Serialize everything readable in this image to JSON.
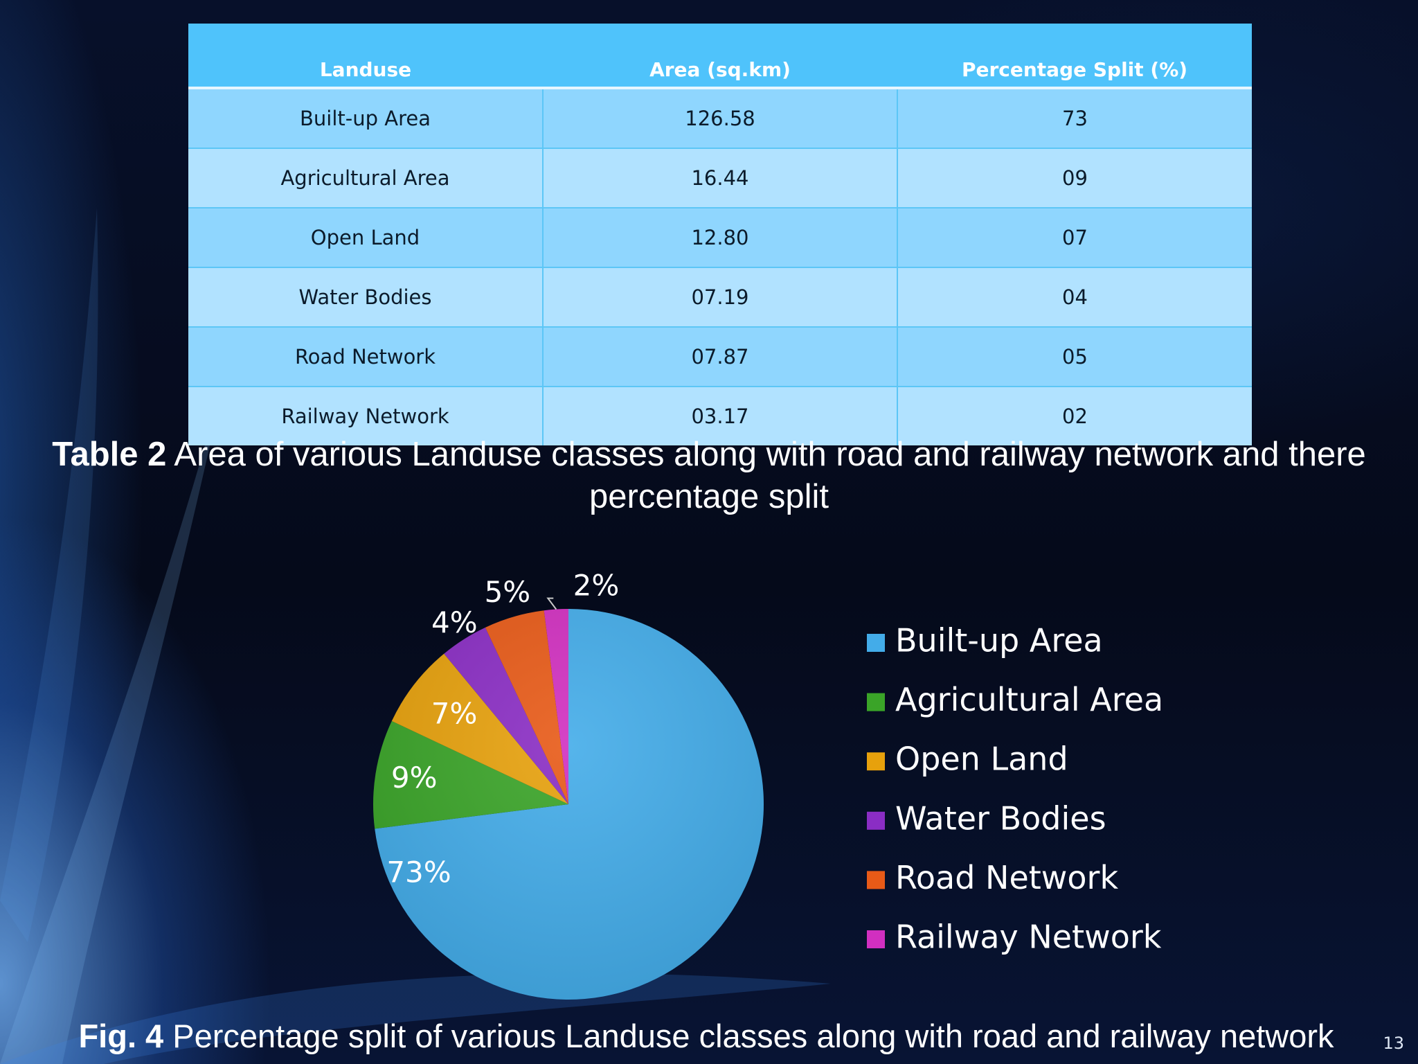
{
  "table": {
    "columns": [
      "Landuse",
      "Area (sq.km)",
      "Percentage Split (%)"
    ],
    "rows": [
      {
        "landuse": "Built-up Area",
        "area": "126.58",
        "percent": "73"
      },
      {
        "landuse": "Agricultural Area",
        "area": "16.44",
        "percent": "09"
      },
      {
        "landuse": "Open Land",
        "area": "12.80",
        "percent": "07"
      },
      {
        "landuse": "Water Bodies",
        "area": "07.19",
        "percent": "04"
      },
      {
        "landuse": "Road Network",
        "area": "07.87",
        "percent": "05"
      },
      {
        "landuse": "Railway Network",
        "area": "03.17",
        "percent": "02"
      }
    ]
  },
  "table_caption": {
    "label": "Table 2",
    "text": " Area of various Landuse classes along with road and railway network and there percentage split"
  },
  "figure_caption": {
    "label": "Fig. 4",
    "text": " Percentage split of various Landuse classes along with road and railway network"
  },
  "page_number": "13",
  "chart_data": {
    "type": "pie",
    "title": "",
    "legend_position": "right",
    "slices": [
      {
        "label": "Built-up Area",
        "value": 73,
        "display": "73%",
        "color": "#43ace9"
      },
      {
        "label": "Agricultural Area",
        "value": 9,
        "display": "9%",
        "color": "#3aa428"
      },
      {
        "label": "Open Land",
        "value": 7,
        "display": "7%",
        "color": "#e7a10c"
      },
      {
        "label": "Water Bodies",
        "value": 4,
        "display": "4%",
        "color": "#8a2dc4"
      },
      {
        "label": "Road Network",
        "value": 5,
        "display": "5%",
        "color": "#e85a17"
      },
      {
        "label": "Railway Network",
        "value": 2,
        "display": "2%",
        "color": "#d12fc0"
      }
    ]
  }
}
